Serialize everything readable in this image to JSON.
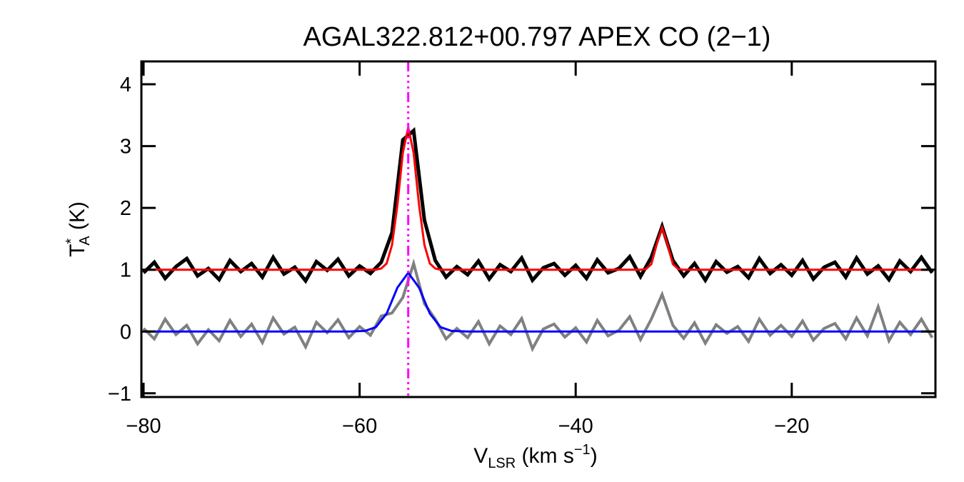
{
  "chart_data": {
    "type": "line",
    "title": "AGAL322.812+00.797  APEX CO (2−1)",
    "xlabel": {
      "main": "V",
      "sub": "LSR",
      "rest": " (km s",
      "sup": "−1",
      "end": ")"
    },
    "ylabel": {
      "main": "T",
      "sup": "*",
      "sub": "A",
      "rest": " (K)"
    },
    "xlim": [
      -80.2,
      -6.7
    ],
    "ylim": [
      -1.06,
      4.37
    ],
    "xticks": [
      {
        "value": -80,
        "label": "−80"
      },
      {
        "value": -60,
        "label": "−60"
      },
      {
        "value": -40,
        "label": "−40"
      },
      {
        "value": -20,
        "label": "−20"
      }
    ],
    "yticks": [
      {
        "value": -1,
        "label": "−1"
      },
      0,
      1,
      2,
      3,
      4
    ],
    "vline": {
      "x": -55.5,
      "color": "#ff00ff"
    },
    "series": [
      {
        "color": "#808080",
        "width": 4,
        "x": [
          -80,
          -79,
          -78,
          -77,
          -76,
          -75,
          -74,
          -73,
          -72,
          -71,
          -70,
          -69,
          -68,
          -67,
          -66,
          -65,
          -64,
          -63,
          -62,
          -61,
          -60,
          -59,
          -58,
          -57,
          -56,
          -55,
          -54,
          -53,
          -52,
          -51,
          -50,
          -49,
          -48,
          -47,
          -46,
          -45,
          -44,
          -43,
          -42,
          -41,
          -40,
          -39,
          -38,
          -37,
          -36,
          -35,
          -34,
          -33,
          -32,
          -31,
          -30,
          -29,
          -28,
          -27,
          -26,
          -25,
          -24,
          -23,
          -22,
          -21,
          -20,
          -19,
          -18,
          -17,
          -16,
          -15,
          -14,
          -13,
          -12,
          -11,
          -10,
          -9,
          -8,
          -7
        ],
        "values": [
          0.05,
          -0.12,
          0.2,
          -0.05,
          0.1,
          -0.2,
          0.03,
          -0.15,
          0.18,
          -0.08,
          0.12,
          -0.18,
          0.22,
          -0.04,
          0.07,
          -0.25,
          0.15,
          -0.02,
          0.19,
          -0.1,
          0.08,
          -0.06,
          0.25,
          0.3,
          0.55,
          1.1,
          0.45,
          0.2,
          -0.12,
          0.05,
          -0.1,
          0.16,
          -0.2,
          0.09,
          -0.05,
          0.21,
          -0.28,
          0.04,
          0.12,
          -0.09,
          0.06,
          -0.17,
          0.18,
          -0.07,
          0.02,
          0.24,
          -0.13,
          0.2,
          0.6,
          0.1,
          -0.11,
          0.14,
          -0.19,
          0.11,
          -0.03,
          0.08,
          -0.16,
          0.2,
          -0.06,
          0.1,
          -0.08,
          0.17,
          -0.14,
          0.05,
          0.13,
          -0.12,
          0.22,
          -0.07,
          0.4,
          -0.15,
          0.15,
          -0.05,
          0.2,
          -0.1
        ]
      },
      {
        "color": "#0000ff",
        "width": 3,
        "x": [
          -80,
          -61,
          -59.5,
          -58.5,
          -57.5,
          -56.5,
          -55.5,
          -54.5,
          -53.5,
          -52.5,
          -51.5,
          -50,
          -7
        ],
        "values": [
          0,
          0,
          0.01,
          0.07,
          0.29,
          0.71,
          0.95,
          0.71,
          0.29,
          0.07,
          0.01,
          0,
          0
        ]
      },
      {
        "color": "#000000",
        "width": 5,
        "x": [
          -80,
          -79,
          -78,
          -77,
          -76,
          -75,
          -74,
          -73,
          -72,
          -71,
          -70,
          -69,
          -68,
          -67,
          -66,
          -65,
          -64,
          -63,
          -62,
          -61,
          -60,
          -59,
          -58,
          -57,
          -56,
          -55,
          -54,
          -53,
          -52,
          -51,
          -50,
          -49,
          -48,
          -47,
          -46,
          -45,
          -44,
          -43,
          -42,
          -41,
          -40,
          -39,
          -38,
          -37,
          -36,
          -35,
          -34,
          -33,
          -32,
          -31,
          -30,
          -29,
          -28,
          -27,
          -26,
          -25,
          -24,
          -23,
          -22,
          -21,
          -20,
          -19,
          -18,
          -17,
          -16,
          -15,
          -14,
          -13,
          -12,
          -11,
          -10,
          -9,
          -8,
          -7
        ],
        "values": [
          0.95,
          1.12,
          0.86,
          1.05,
          1.18,
          0.9,
          1.02,
          0.84,
          1.15,
          0.97,
          1.1,
          0.88,
          1.2,
          0.93,
          1.04,
          0.82,
          1.13,
          0.99,
          1.17,
          0.9,
          1.06,
          0.94,
          1.12,
          1.6,
          3.1,
          3.25,
          1.8,
          1.15,
          0.88,
          1.05,
          0.92,
          1.14,
          0.85,
          1.08,
          0.97,
          1.19,
          0.83,
          1.03,
          1.1,
          0.91,
          1.07,
          0.86,
          1.16,
          0.95,
          1.02,
          1.21,
          0.89,
          1.2,
          1.7,
          1.15,
          0.9,
          1.1,
          0.83,
          1.13,
          0.96,
          1.05,
          0.87,
          1.18,
          0.94,
          1.08,
          0.91,
          1.15,
          0.85,
          1.04,
          1.12,
          0.88,
          1.19,
          0.93,
          1.06,
          0.84,
          1.14,
          0.97,
          1.2,
          0.95
        ]
      },
      {
        "color": "#ff0000",
        "width": 3,
        "x": [
          -80,
          -60,
          -58.5,
          -58,
          -57.5,
          -57,
          -56.5,
          -56,
          -55.5,
          -55,
          -54.5,
          -54,
          -53.5,
          -53,
          -52.5,
          -50,
          -34,
          -33.5,
          -33,
          -32.5,
          -32,
          -31.5,
          -31,
          -30.5,
          -30,
          -7
        ],
        "values": [
          1,
          1,
          1,
          1.02,
          1.1,
          1.4,
          2.05,
          2.89,
          3.3,
          2.89,
          2.05,
          1.4,
          1.1,
          1.02,
          1,
          1,
          1,
          1.01,
          1.09,
          1.41,
          1.68,
          1.41,
          1.09,
          1.01,
          1,
          1
        ]
      }
    ]
  }
}
